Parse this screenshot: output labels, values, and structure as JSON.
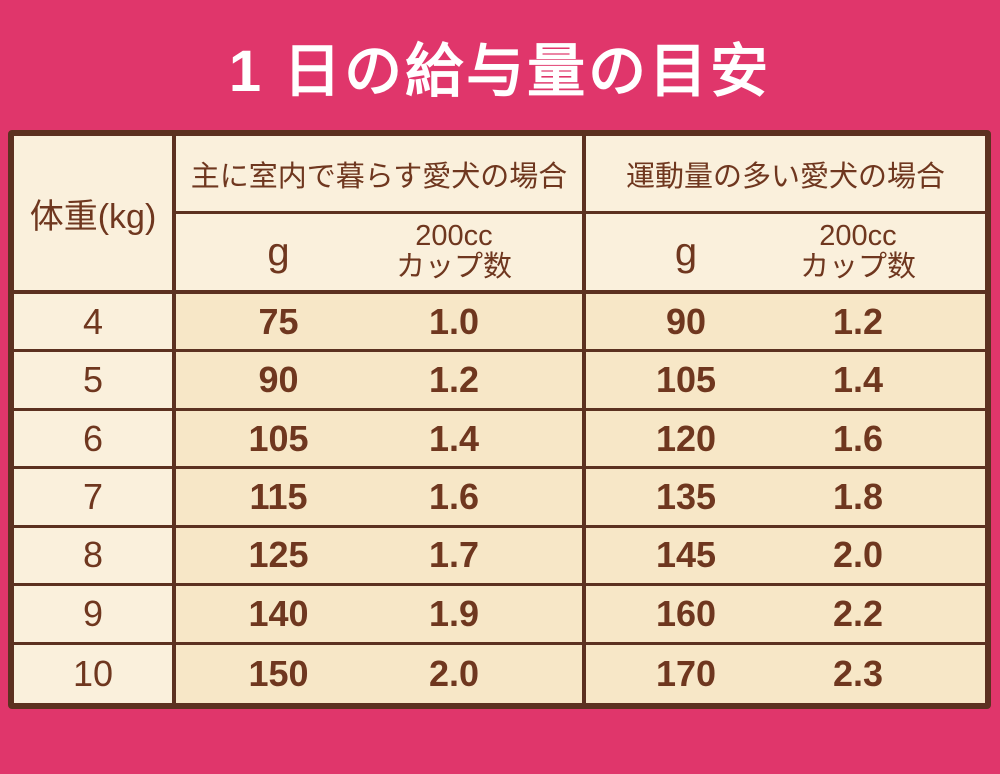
{
  "title": "1 日の給与量の目安",
  "colors": {
    "background_pink": "#E0366B",
    "table_cream": "#FAF0DC",
    "data_cell_tan": "#F7E7C7",
    "border_brown": "#5C3120",
    "text_brown": "#6F371F",
    "title_white": "#FFFFFF"
  },
  "table": {
    "weight_header": "体重(kg)",
    "groups": [
      {
        "label": "主に室内で暮らす愛犬の場合",
        "unit_g": "g",
        "unit_cup_line1": "200cc",
        "unit_cup_line2": "カップ数"
      },
      {
        "label": "運動量の多い愛犬の場合",
        "unit_g": "g",
        "unit_cup_line1": "200cc",
        "unit_cup_line2": "カップ数"
      }
    ],
    "rows": [
      {
        "weight": "4",
        "indoor_g": "75",
        "indoor_cup": "1.0",
        "active_g": "90",
        "active_cup": "1.2"
      },
      {
        "weight": "5",
        "indoor_g": "90",
        "indoor_cup": "1.2",
        "active_g": "105",
        "active_cup": "1.4"
      },
      {
        "weight": "6",
        "indoor_g": "105",
        "indoor_cup": "1.4",
        "active_g": "120",
        "active_cup": "1.6"
      },
      {
        "weight": "7",
        "indoor_g": "115",
        "indoor_cup": "1.6",
        "active_g": "135",
        "active_cup": "1.8"
      },
      {
        "weight": "8",
        "indoor_g": "125",
        "indoor_cup": "1.7",
        "active_g": "145",
        "active_cup": "2.0"
      },
      {
        "weight": "9",
        "indoor_g": "140",
        "indoor_cup": "1.9",
        "active_g": "160",
        "active_cup": "2.2"
      },
      {
        "weight": "10",
        "indoor_g": "150",
        "indoor_cup": "2.0",
        "active_g": "170",
        "active_cup": "2.3"
      }
    ]
  },
  "chart_data": {
    "type": "table",
    "title": "1 日の給与量の目安",
    "columns": [
      "体重(kg)",
      "主に室内で暮らす愛犬の場合 g",
      "主に室内で暮らす愛犬の場合 200ccカップ数",
      "運動量の多い愛犬の場合 g",
      "運動量の多い愛犬の場合 200ccカップ数"
    ],
    "rows": [
      [
        4,
        75,
        1.0,
        90,
        1.2
      ],
      [
        5,
        90,
        1.2,
        105,
        1.4
      ],
      [
        6,
        105,
        1.4,
        120,
        1.6
      ],
      [
        7,
        115,
        1.6,
        135,
        1.8
      ],
      [
        8,
        125,
        1.7,
        145,
        2.0
      ],
      [
        9,
        140,
        1.9,
        160,
        2.2
      ],
      [
        10,
        150,
        2.0,
        170,
        2.3
      ]
    ]
  }
}
